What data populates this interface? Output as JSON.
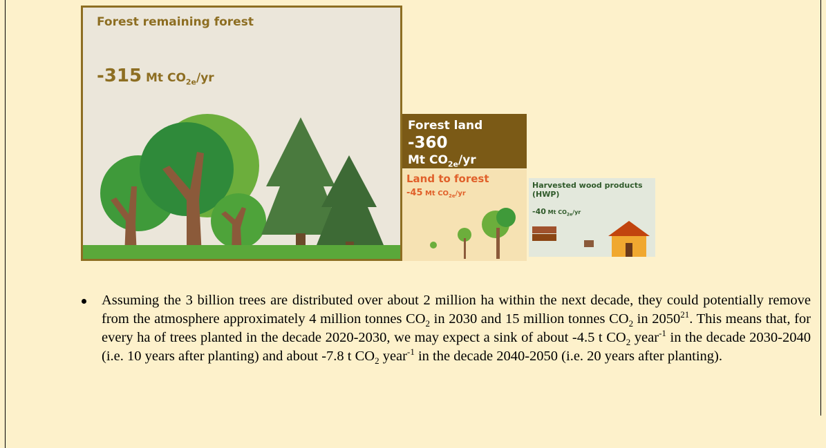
{
  "infographic": {
    "forest_remaining": {
      "label": "Forest remaining forest",
      "value": "-315",
      "unit": "Mt CO",
      "unit_sub": "2e",
      "unit_end": "/yr"
    },
    "forest_land": {
      "label": "Forest land",
      "value": "-360",
      "unit": "Mt CO",
      "unit_sub": "2e",
      "unit_end": "/yr"
    },
    "land_to_forest": {
      "label": "Land to forest",
      "value": "-45",
      "unit": "Mt CO",
      "unit_sub": "2e",
      "unit_end": "/yr"
    },
    "hwp": {
      "label": "Harvested wood products (HWP)",
      "value": "-40",
      "unit": "Mt CO",
      "unit_sub": "2e",
      "unit_end": "/yr"
    }
  },
  "bullet": {
    "runs": [
      {
        "text": "Assuming the 3 billion trees are distributed over about 2 million ha within the next decade, they could potentially remove from the atmosphere approximately 4 million tonnes CO",
        "pos": "base"
      },
      {
        "text": "2",
        "pos": "sub"
      },
      {
        "text": " in 2030 and 15 million tonnes CO",
        "pos": "base"
      },
      {
        "text": "2",
        "pos": "sub"
      },
      {
        "text": " in 2050",
        "pos": "base"
      },
      {
        "text": "21",
        "pos": "sup"
      },
      {
        "text": ". This means that, for every ha of trees planted in the decade 2020-2030, we may expect a sink of about -4.5 t CO",
        "pos": "base"
      },
      {
        "text": "2",
        "pos": "sub"
      },
      {
        "text": " year",
        "pos": "base"
      },
      {
        "text": "-1",
        "pos": "sup"
      },
      {
        "text": " in the decade 2030-2040 (i.e. 10 years after planting) and about -7.8 t CO",
        "pos": "base"
      },
      {
        "text": "2",
        "pos": "sub"
      },
      {
        "text": " year",
        "pos": "base"
      },
      {
        "text": "-1",
        "pos": "sup"
      },
      {
        "text": " in the decade 2040-2050 (i.e. 20 years after planting).",
        "pos": "base"
      }
    ]
  }
}
